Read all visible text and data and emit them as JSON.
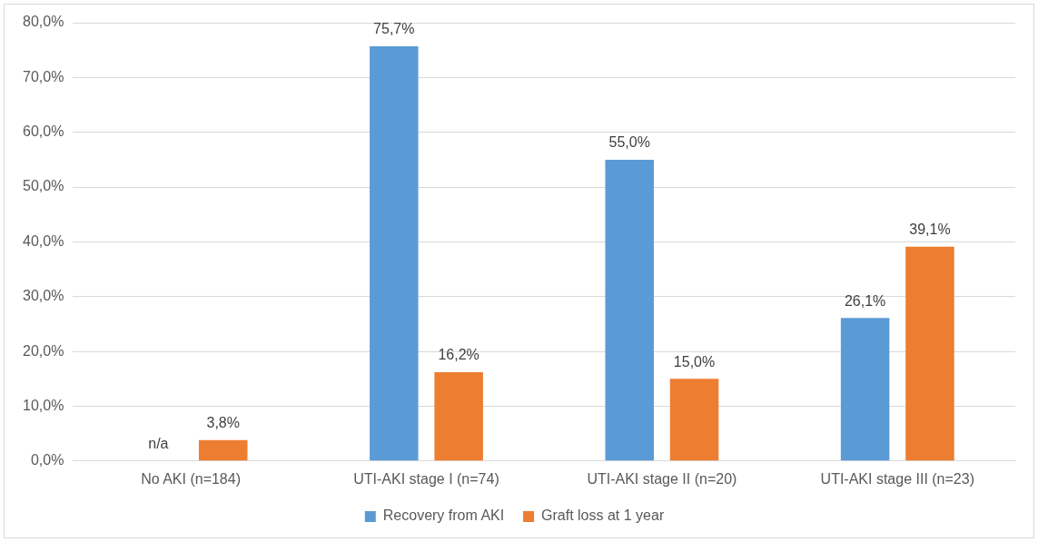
{
  "chart_data": {
    "type": "bar",
    "categories": [
      "No AKI (n=184)",
      "UTI-AKI stage I (n=74)",
      "UTI-AKI stage II (n=20)",
      "UTI-AKI stage III (n=23)"
    ],
    "series": [
      {
        "name": "Recovery from AKI",
        "color": "#5b9bd5",
        "values": [
          null,
          75.7,
          55.0,
          26.1
        ],
        "value_labels": [
          "n/a",
          "75,7%",
          "55,0%",
          "26,1%"
        ]
      },
      {
        "name": "Graft loss at 1 year",
        "color": "#ed7d31",
        "values": [
          3.8,
          16.2,
          15.0,
          39.1
        ],
        "value_labels": [
          "3,8%",
          "16,2%",
          "15,0%",
          "39,1%"
        ]
      }
    ],
    "ylim": [
      0,
      80
    ],
    "yticks": [
      {
        "value": 0,
        "label": "0,0%"
      },
      {
        "value": 10,
        "label": "10,0%"
      },
      {
        "value": 20,
        "label": "20,0%"
      },
      {
        "value": 30,
        "label": "30,0%"
      },
      {
        "value": 40,
        "label": "40,0%"
      },
      {
        "value": 50,
        "label": "50,0%"
      },
      {
        "value": 60,
        "label": "60,0%"
      },
      {
        "value": 70,
        "label": "70,0%"
      },
      {
        "value": 80,
        "label": "80,0%"
      }
    ],
    "grid": "y",
    "legend": "bottom"
  }
}
